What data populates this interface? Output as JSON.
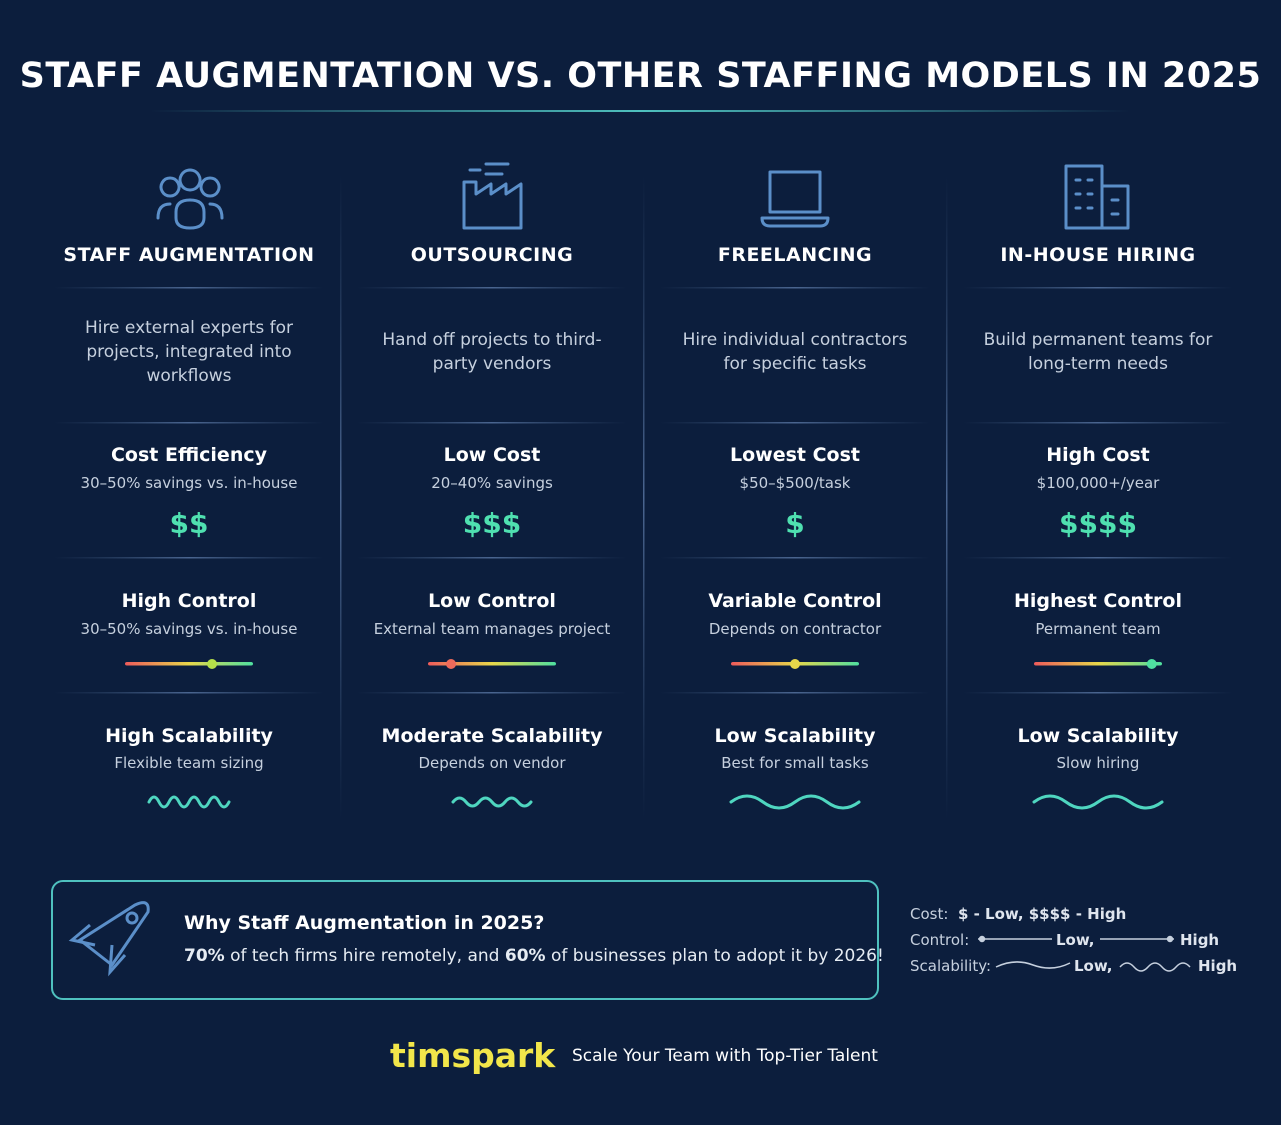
{
  "title": "STAFF AUGMENTATION VS. OTHER STAFFING MODELS IN 2025",
  "columns": [
    {
      "name": "STAFF AUGMENTATION",
      "description": "Hire external experts for projects, integrated into workflows",
      "cost": {
        "label": "Cost Efficiency",
        "detail": "30–50% savings vs. in-house",
        "symbol": "$$"
      },
      "control": {
        "label": "High Control",
        "detail": "30–50% savings vs. in-house"
      },
      "scalability": {
        "label": "High Scalability",
        "detail": "Flexible team sizing"
      }
    },
    {
      "name": "OUTSOURCING",
      "description": "Hand off projects to third-party vendors",
      "cost": {
        "label": "Low Cost",
        "detail": "20–40% savings",
        "symbol": "$$$"
      },
      "control": {
        "label": "Low Control",
        "detail": "External team manages project"
      },
      "scalability": {
        "label": "Moderate Scalability",
        "detail": "Depends on vendor"
      }
    },
    {
      "name": "FREELANCING",
      "description": "Hire individual contractors for specific tasks",
      "cost": {
        "label": "Lowest Cost",
        "detail": "$50–$500/task",
        "symbol": "$"
      },
      "control": {
        "label": "Variable Control",
        "detail": "Depends on contractor"
      },
      "scalability": {
        "label": "Low Scalability",
        "detail": "Best for small tasks"
      }
    },
    {
      "name": "IN-HOUSE HIRING",
      "description": "Build permanent teams for long-term needs",
      "cost": {
        "label": "High Cost",
        "detail": "$100,000+/year",
        "symbol": "$$$$"
      },
      "control": {
        "label": "Highest Control",
        "detail": "Permanent team"
      },
      "scalability": {
        "label": "Low Scalability",
        "detail": "Slow hiring"
      }
    }
  ],
  "callout": {
    "title": "Why Staff Augmentation in 2025?",
    "text": [
      "70%",
      " of tech firms hire remotely, and ",
      "60%",
      " of businesses plan to adopt it by 2026!"
    ]
  },
  "legend": {
    "cost_label": "Cost:",
    "cost_scale": "$ - Low, $$$$ - High",
    "control_label": "Control:",
    "control_low": "Low,",
    "control_high": "High",
    "scalability_label": "Scalability:",
    "scalability_low": "Low,",
    "scalability_high": "High"
  },
  "footer": {
    "brand": "timspark",
    "tagline": "Scale Your Team with Top-Tier Talent"
  }
}
